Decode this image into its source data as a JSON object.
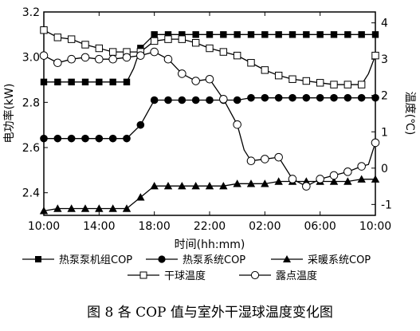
{
  "chart_data": {
    "type": "line",
    "x_ticks": [
      "10:00",
      "14:00",
      "18:00",
      "22:00",
      "02:00",
      "06:00",
      "10:00"
    ],
    "xlabel": "时间(hh:mm)",
    "ylabel_left": "电功率(kW)",
    "ylabel_right": "温度(℃)",
    "ylim_left": [
      2.3,
      3.2
    ],
    "ylim_right": [
      -1.3,
      4.3
    ],
    "yticks_left": [
      "2.4",
      "2.6",
      "2.8",
      "3.0",
      "3.2"
    ],
    "yticks_right": [
      "-1",
      "0",
      "1",
      "2",
      "3",
      "4"
    ],
    "x_unit": "hours from 10:00 (day 1)",
    "series": [
      {
        "name": "热泵泵机组COP",
        "axis": "left",
        "marker": "square",
        "color": "#000000",
        "x": [
          0,
          1,
          2,
          3,
          4,
          5,
          6,
          6.5,
          7,
          8,
          9,
          10,
          11,
          12,
          13,
          14,
          15,
          16,
          17,
          18,
          19,
          20,
          21,
          22,
          23,
          24
        ],
        "y": [
          2.89,
          2.89,
          2.89,
          2.89,
          2.89,
          2.89,
          2.89,
          2.95,
          3.04,
          3.1,
          3.1,
          3.1,
          3.1,
          3.1,
          3.1,
          3.1,
          3.1,
          3.1,
          3.1,
          3.1,
          3.1,
          3.1,
          3.1,
          3.1,
          3.1,
          3.1
        ]
      },
      {
        "name": "热泵系统COP",
        "axis": "left",
        "marker": "circle",
        "color": "#000000",
        "x": [
          0,
          1,
          2,
          3,
          4,
          5,
          6,
          7,
          8,
          9,
          10,
          11,
          12,
          13,
          14,
          15,
          16,
          17,
          18,
          19,
          20,
          21,
          22,
          23,
          24
        ],
        "y": [
          2.64,
          2.64,
          2.64,
          2.64,
          2.64,
          2.64,
          2.64,
          2.7,
          2.81,
          2.81,
          2.81,
          2.81,
          2.81,
          2.81,
          2.81,
          2.82,
          2.82,
          2.82,
          2.82,
          2.82,
          2.82,
          2.82,
          2.82,
          2.82,
          2.82
        ]
      },
      {
        "name": "采暖系统COP",
        "axis": "left",
        "marker": "triangle",
        "color": "#000000",
        "x": [
          0,
          1,
          2,
          3,
          4,
          5,
          6,
          7,
          8,
          9,
          10,
          11,
          12,
          13,
          14,
          15,
          16,
          17,
          18,
          19,
          20,
          21,
          22,
          23,
          24
        ],
        "y": [
          2.32,
          2.33,
          2.33,
          2.33,
          2.33,
          2.33,
          2.33,
          2.38,
          2.43,
          2.43,
          2.43,
          2.43,
          2.43,
          2.43,
          2.44,
          2.44,
          2.44,
          2.45,
          2.45,
          2.45,
          2.45,
          2.45,
          2.45,
          2.46,
          2.46
        ]
      },
      {
        "name": "干球温度",
        "axis": "right",
        "marker": "open-square",
        "color": "#000000",
        "x": [
          0,
          1,
          2,
          3,
          4,
          5,
          6,
          7,
          8,
          9,
          10,
          11,
          12,
          13,
          14,
          15,
          16,
          17,
          18,
          19,
          20,
          21,
          22,
          23,
          23.5,
          24
        ],
        "y": [
          3.8,
          3.6,
          3.55,
          3.4,
          3.3,
          3.2,
          3.2,
          3.2,
          3.5,
          3.55,
          3.55,
          3.45,
          3.3,
          3.2,
          3.1,
          2.9,
          2.7,
          2.55,
          2.45,
          2.4,
          2.35,
          2.3,
          2.3,
          2.3,
          2.6,
          3.1
        ]
      },
      {
        "name": "露点温度",
        "axis": "right",
        "marker": "open-circle",
        "color": "#000000",
        "x": [
          0,
          1,
          2,
          3,
          4,
          5,
          6,
          7,
          8,
          9,
          10,
          11,
          12,
          13,
          14,
          14.5,
          15,
          16,
          17,
          18,
          19,
          20,
          21,
          22,
          23,
          23.5,
          24
        ],
        "y": [
          3.1,
          2.9,
          3.0,
          3.05,
          3.0,
          3.0,
          3.05,
          3.1,
          3.2,
          3.0,
          2.6,
          2.4,
          2.45,
          1.9,
          1.2,
          0.5,
          0.2,
          0.25,
          0.3,
          -0.3,
          -0.5,
          -0.3,
          -0.2,
          -0.1,
          0.05,
          0.1,
          0.7
        ]
      }
    ]
  },
  "caption": "图 8  各 COP 值与室外干湿球温度变化图"
}
